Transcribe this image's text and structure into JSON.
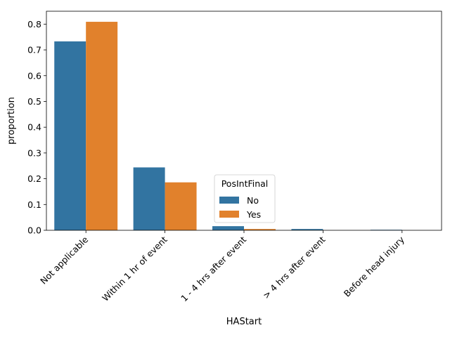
{
  "chart_data": {
    "type": "bar",
    "xlabel": "HAStart",
    "ylabel": "proportion",
    "categories": [
      "Not applicable",
      "Within 1 hr of event",
      "1 - 4 hrs after event",
      "> 4 hrs after event",
      "Before head injury"
    ],
    "series": [
      {
        "name": "No",
        "color": "#3274a1",
        "values": [
          0.733,
          0.244,
          0.016,
          0.005,
          0.002
        ]
      },
      {
        "name": "Yes",
        "color": "#e1812c",
        "values": [
          0.809,
          0.186,
          0.005,
          0.0,
          0.0
        ]
      }
    ],
    "ylim": [
      0,
      0.85
    ],
    "yticks": [
      "0.0",
      "0.1",
      "0.2",
      "0.3",
      "0.4",
      "0.5",
      "0.6",
      "0.7",
      "0.8"
    ],
    "grid": false,
    "legend": {
      "title": "PosIntFinal",
      "placement": "center"
    }
  }
}
